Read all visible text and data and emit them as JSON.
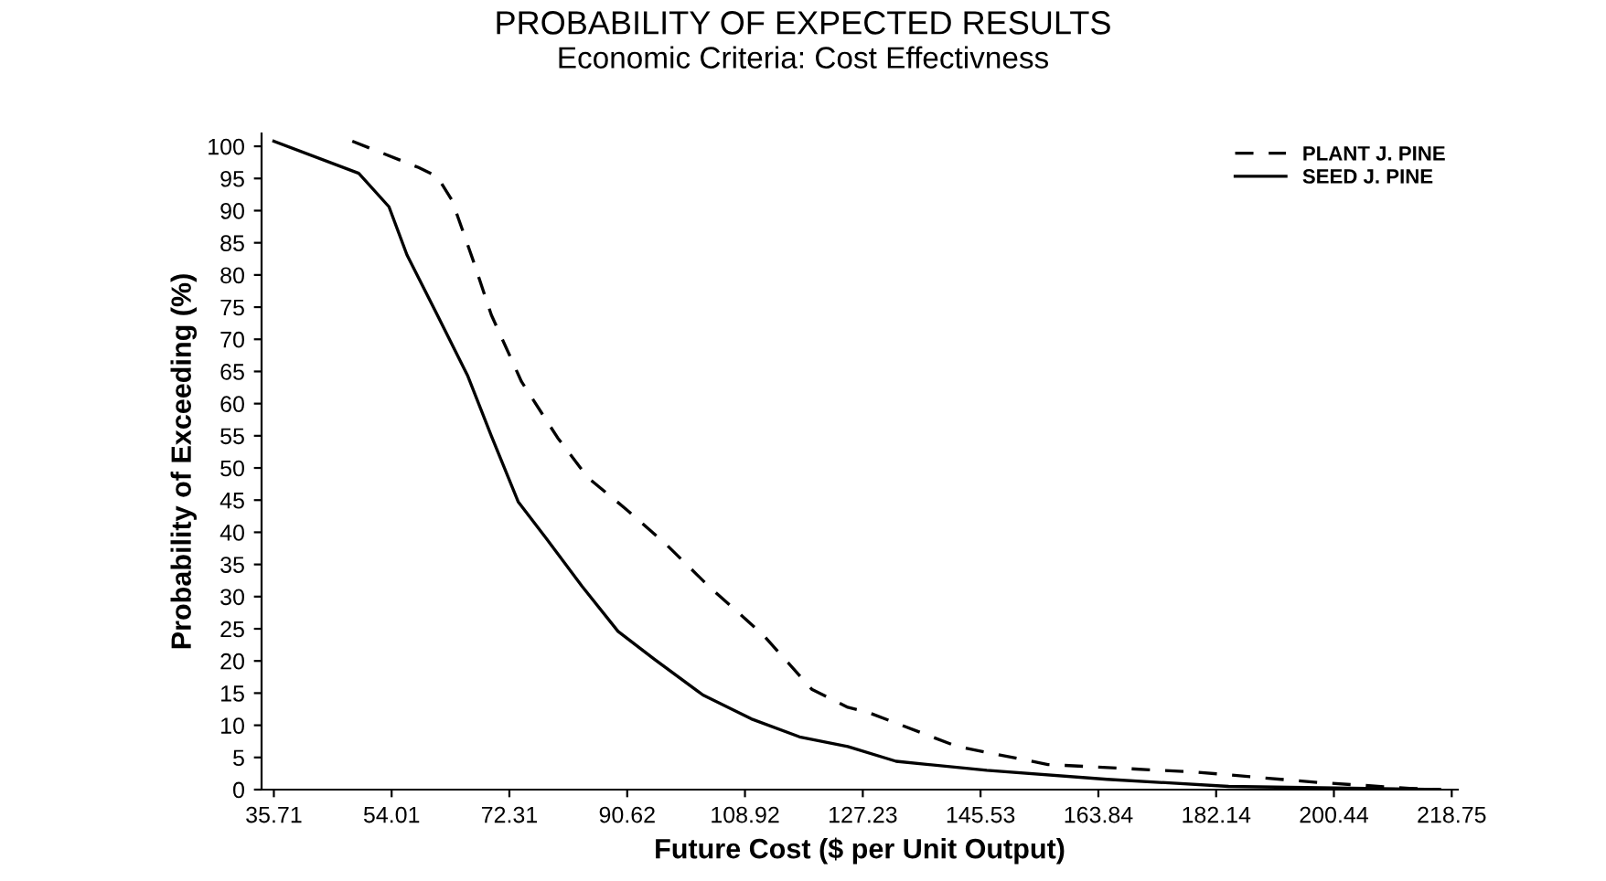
{
  "chart_data": {
    "type": "line",
    "title": "PROBABILITY OF EXPECTED RESULTS",
    "subtitle": "Economic Criteria: Cost Effectivness",
    "xlabel": "Future Cost ($ per Unit Output)",
    "ylabel": "Probability of Exceeding (%)",
    "xlim": [
      33.8,
      219.7
    ],
    "ylim": [
      0,
      102
    ],
    "xticks": [
      35.71,
      54.01,
      72.31,
      90.62,
      108.92,
      127.23,
      145.53,
      163.84,
      182.14,
      200.44,
      218.75
    ],
    "yticks": [
      0,
      5,
      10,
      15,
      20,
      25,
      30,
      35,
      40,
      45,
      50,
      55,
      60,
      65,
      70,
      75,
      80,
      85,
      90,
      95,
      100
    ],
    "grid": false,
    "legend": "top right",
    "series": [
      {
        "name": "PLANT J. PINE",
        "color": "#000000",
        "line_style": "dashed",
        "x": [
          47.9,
          58.2,
          61.1,
          63.4,
          66.7,
          69.5,
          74.2,
          79.8,
          84.5,
          90.2,
          96.7,
          103.3,
          111.7,
          119.3,
          124.9,
          127.8,
          141.9,
          156.0,
          179.3,
          198.1,
          212.2,
          216.9
        ],
        "values": [
          100.8,
          96.7,
          95.3,
          91.6,
          82.2,
          73.8,
          63.4,
          54.7,
          48.5,
          43.8,
          38.1,
          31.6,
          24.1,
          15.6,
          12.8,
          12.1,
          6.7,
          3.9,
          2.7,
          1.1,
          0.2,
          0
        ]
      },
      {
        "name": "SEED J. PINE",
        "color": "#000000",
        "line_style": "solid",
        "x": [
          35.71,
          48.9,
          53.6,
          56.4,
          61.1,
          65.8,
          69.5,
          73.7,
          78.0,
          83.6,
          89.2,
          94.8,
          102.4,
          109.9,
          117.4,
          124.9,
          132.4,
          146.5,
          165.2,
          184.1,
          216.9
        ],
        "values": [
          100.8,
          95.8,
          90.6,
          83.1,
          73.8,
          64.4,
          55.0,
          44.7,
          39.1,
          31.6,
          24.6,
          20.3,
          14.7,
          11.0,
          8.2,
          6.7,
          4.4,
          3.0,
          1.6,
          0.5,
          0
        ]
      }
    ]
  }
}
